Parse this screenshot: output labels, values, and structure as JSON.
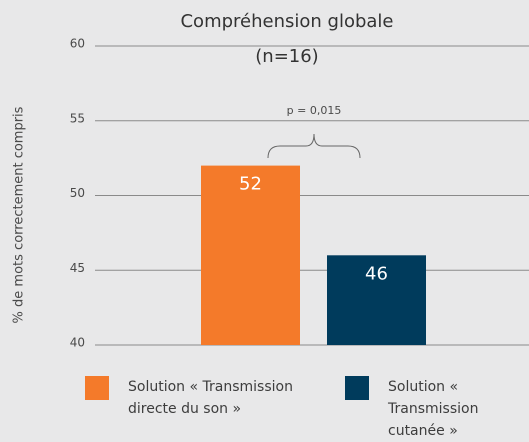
{
  "chart_data": {
    "type": "bar",
    "title": "Compréhension globale",
    "subtitle": "(n=16)",
    "y_label": "% de mots correctement compris",
    "annotation": "p = 0,015",
    "series": [
      {
        "name": "Solution « Transmission directe du son »",
        "color": "#f47a2a",
        "values": [
          52
        ]
      },
      {
        "name": "Solution « Transmission cutanée »",
        "color": "#003b5c",
        "values": [
          46
        ]
      }
    ],
    "ylim": [
      40,
      60
    ],
    "yticks": [
      40,
      45,
      50,
      55,
      60
    ],
    "grid": true
  }
}
